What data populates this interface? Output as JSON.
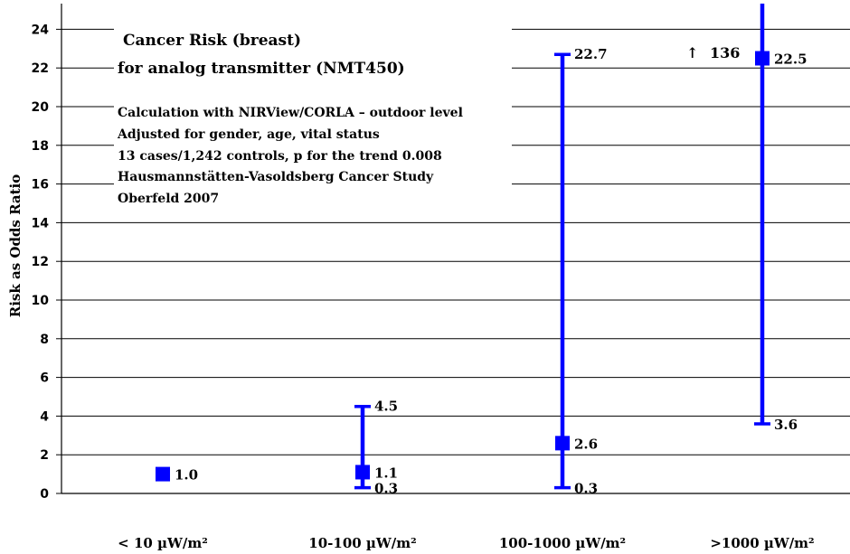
{
  "chart_data": {
    "type": "scatter",
    "ylabel": "Risk as Odds Ratio",
    "ylim": [
      0,
      25
    ],
    "yticks": [
      0,
      2,
      4,
      6,
      8,
      10,
      12,
      14,
      16,
      18,
      20,
      22,
      24
    ],
    "ytick_labels": [
      "0",
      "2",
      "4",
      "6",
      "8",
      "10",
      "12",
      "14",
      "16",
      "18",
      "20",
      "22",
      "24"
    ],
    "grid": true,
    "categories": [
      "< 10 µW/m²",
      "10-100 µW/m²",
      "100-1000 µW/m²",
      ">1000 µW/m²"
    ],
    "points": [
      {
        "category": "< 10 µW/m²",
        "value": 1.0,
        "value_label": "1.0"
      },
      {
        "category": "10-100 µW/m²",
        "value": 1.1,
        "value_label": "1.1",
        "lower": 0.3,
        "lower_label": "0.3",
        "upper": 4.5,
        "upper_label": "4.5"
      },
      {
        "category": "100-1000 µW/m²",
        "value": 2.6,
        "value_label": "2.6",
        "lower": 0.3,
        "lower_label": "0.3",
        "upper": 22.7,
        "upper_label": "22.7"
      },
      {
        "category": ">1000 µW/m²",
        "value": 22.5,
        "value_label": "22.5",
        "lower": 3.6,
        "lower_label": "3.6",
        "upper": 136,
        "upper_label": "136",
        "upper_off_scale": true,
        "upper_marker": "↑"
      }
    ],
    "annotation_title": [
      "Cancer Risk (breast)",
      "for analog transmitter (NMT450)"
    ],
    "annotation_text": [
      "Calculation with NIRView/CORLA – outdoor level",
      "Adjusted for gender, age, vital status",
      "13 cases/1,242 controls, p for the trend 0.008",
      "Hausmannstätten-Vasoldsberg Cancer Study",
      "Oberfeld 2007"
    ],
    "colors": {
      "series": "#0000ff",
      "grid": "#000000",
      "text": "#000000"
    }
  }
}
